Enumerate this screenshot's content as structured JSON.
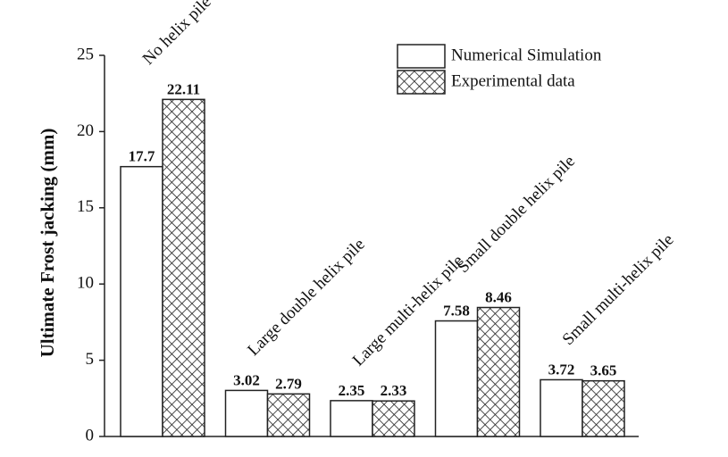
{
  "chart_data": {
    "type": "bar",
    "y_label": "Ultimate Frost jacking (mm)",
    "categories": [
      "No helix pile",
      "Large double helix pile",
      "Large multi-helix pile",
      "Small double helix pile",
      "Small multi-helix pile"
    ],
    "series": [
      {
        "name": "Numerical Simulation",
        "color": "#ffffff",
        "values": [
          17.7,
          3.02,
          2.35,
          7.58,
          3.72
        ]
      },
      {
        "name": "Experimental data",
        "color": "#ffffff",
        "hatch": "crosshatch",
        "values": [
          22.11,
          2.79,
          2.33,
          8.46,
          3.65
        ]
      }
    ],
    "ylim": [
      0,
      25
    ],
    "yticks": [
      0,
      5,
      10,
      15,
      20,
      25
    ],
    "grid": false,
    "legend": "upper right"
  }
}
